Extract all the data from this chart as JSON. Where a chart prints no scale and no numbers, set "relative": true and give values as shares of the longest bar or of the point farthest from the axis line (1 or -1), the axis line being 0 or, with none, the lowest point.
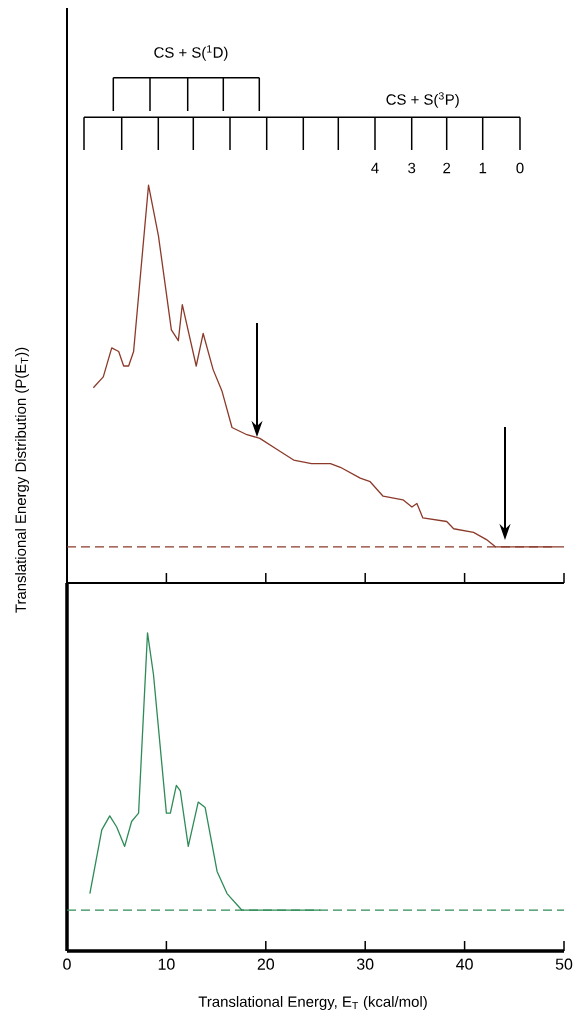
{
  "chart_data": [
    {
      "type": "line",
      "ylabel": "Translational Energy Distribution (P(E$_{T}$))",
      "relative": true,
      "xlim": [
        0,
        50
      ],
      "xticks": [
        0,
        10,
        20,
        30,
        40,
        50
      ],
      "tick_labels": false,
      "annotations": [
        "CS + S($^{1}$D)",
        "CS + S($^{3}$P)",
        "4",
        "3",
        "2",
        "1",
        "0"
      ],
      "ref_lines": [
        {
          "axis": "y",
          "value": 0,
          "color": "#8b3a2a",
          "line_style": "dashed"
        }
      ],
      "series": [
        {
          "color": "#8b3a2a",
          "x": [
            2.65,
            3.65,
            4.5,
            5.2,
            5.7,
            6.2,
            6.7,
            8.2,
            9.2,
            10.5,
            11.2,
            11.6,
            13.0,
            13.7,
            14.7,
            15.6,
            16.6,
            18.1,
            19.4,
            21.1,
            22.8,
            24.6,
            26.5,
            27.5,
            29.5,
            30.5,
            31.8,
            33.8,
            34.7,
            35.2,
            35.8,
            38.2,
            38.9,
            40.9,
            42.2,
            43.1,
            44.9,
            49.3
          ],
          "values": [
            0.44,
            0.47,
            0.55,
            0.54,
            0.5,
            0.5,
            0.54,
            1.0,
            0.86,
            0.6,
            0.57,
            0.67,
            0.5,
            0.59,
            0.49,
            0.43,
            0.33,
            0.31,
            0.3,
            0.27,
            0.24,
            0.23,
            0.23,
            0.22,
            0.19,
            0.18,
            0.14,
            0.13,
            0.11,
            0.12,
            0.08,
            0.07,
            0.05,
            0.04,
            0.02,
            0,
            0,
            0
          ]
        }
      ]
    },
    {
      "type": "line",
      "xlabel": "Translational Energy, E$_{T}$ (kcal/mol)",
      "relative": true,
      "xlim": [
        0,
        50
      ],
      "xticks": [
        0,
        10,
        20,
        30,
        40,
        50
      ],
      "tick_labels": "x",
      "ref_lines": [
        {
          "axis": "y",
          "value": 0,
          "color": "#2e8b57",
          "line_style": "dashed"
        }
      ],
      "series": [
        {
          "color": "#2e8b57",
          "x": [
            2.3,
            3.5,
            4.3,
            5.0,
            5.8,
            6.5,
            7.2,
            8.1,
            8.7,
            10.0,
            10.4,
            11.0,
            11.4,
            12.2,
            13.2,
            13.9,
            15.1,
            16.1,
            17.6,
            25.5
          ],
          "values": [
            0.06,
            0.29,
            0.34,
            0.3,
            0.23,
            0.32,
            0.35,
            1.0,
            0.85,
            0.35,
            0.35,
            0.45,
            0.43,
            0.23,
            0.39,
            0.37,
            0.14,
            0.06,
            0,
            0
          ]
        }
      ]
    }
  ]
}
